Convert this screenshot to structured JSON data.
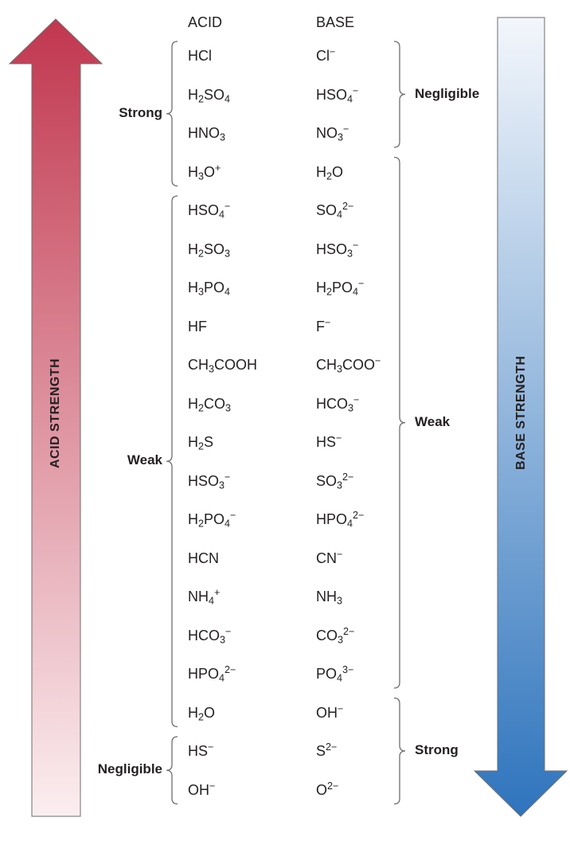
{
  "headers": {
    "acid": "ACID",
    "base": "BASE"
  },
  "arrows": {
    "acid_label": "ACID STRENGTH",
    "base_label": "BASE STRENGTH",
    "acid_color_top": "#c1374f",
    "acid_color_bottom": "#fbeef0",
    "base_color_top": "#f3f6fb",
    "base_color_bottom": "#2e74bd"
  },
  "pairs": [
    {
      "acid": "HCl",
      "base": "Cl⁻"
    },
    {
      "acid": "H₂SO₄",
      "base": "HSO₄⁻"
    },
    {
      "acid": "HNO₃",
      "base": "NO₃⁻"
    },
    {
      "acid": "H₃O⁺",
      "base": "H₂O"
    },
    {
      "acid": "HSO₄⁻",
      "base": "SO₄²⁻"
    },
    {
      "acid": "H₂SO₃",
      "base": "HSO₃⁻"
    },
    {
      "acid": "H₃PO₄",
      "base": "H₂PO₄⁻"
    },
    {
      "acid": "HF",
      "base": "F⁻"
    },
    {
      "acid": "CH₃COOH",
      "base": "CH₃COO⁻"
    },
    {
      "acid": "H₂CO₃",
      "base": "HCO₃⁻"
    },
    {
      "acid": "H₂S",
      "base": "HS⁻"
    },
    {
      "acid": "HSO₃⁻",
      "base": "SO₃²⁻"
    },
    {
      "acid": "H₂PO₄⁻",
      "base": "HPO₄²⁻"
    },
    {
      "acid": "HCN",
      "base": "CN⁻"
    },
    {
      "acid": "NH₄⁺",
      "base": "NH₃"
    },
    {
      "acid": "HCO₃⁻",
      "base": "CO₃²⁻"
    },
    {
      "acid": "HPO₄²⁻",
      "base": "PO₄³⁻"
    },
    {
      "acid": "H₂O",
      "base": "OH⁻"
    },
    {
      "acid": "HS⁻",
      "base": "S²⁻"
    },
    {
      "acid": "OH⁻",
      "base": "O²⁻"
    }
  ],
  "acid_groups": [
    {
      "label": "Strong",
      "first": 0,
      "last": 3
    },
    {
      "label": "Weak",
      "first": 4,
      "last": 17
    },
    {
      "label": "Negligible",
      "first": 18,
      "last": 19
    }
  ],
  "base_groups": [
    {
      "label": "Negligible",
      "first": 0,
      "last": 2
    },
    {
      "label": "Weak",
      "first": 3,
      "last": 16
    },
    {
      "label": "Strong",
      "first": 17,
      "last": 19
    }
  ]
}
